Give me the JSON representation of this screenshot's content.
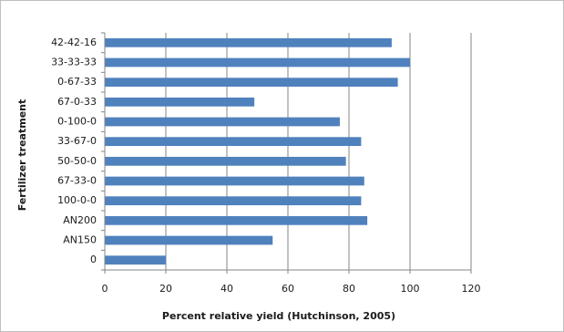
{
  "chart_data": {
    "type": "bar",
    "orientation": "horizontal",
    "categories": [
      "42-42-16",
      "33-33-33",
      "0-67-33",
      "67-0-33",
      "0-100-0",
      "33-67-0",
      "50-50-0",
      "67-33-0",
      "100-0-0",
      "AN200",
      "AN150",
      "0"
    ],
    "values": [
      94,
      100,
      96,
      49,
      77,
      84,
      79,
      85,
      84,
      86,
      55,
      20
    ],
    "title": "",
    "xlabel": "Percent relative yield (Hutchinson, 2005)",
    "ylabel": "Fertilizer treatment",
    "xlim": [
      0,
      120
    ],
    "x_ticks": [
      "0",
      "20",
      "40",
      "60",
      "80",
      "100",
      "120"
    ],
    "grid": "vertical",
    "legend": "none",
    "bar_color": "#4f81bd"
  }
}
